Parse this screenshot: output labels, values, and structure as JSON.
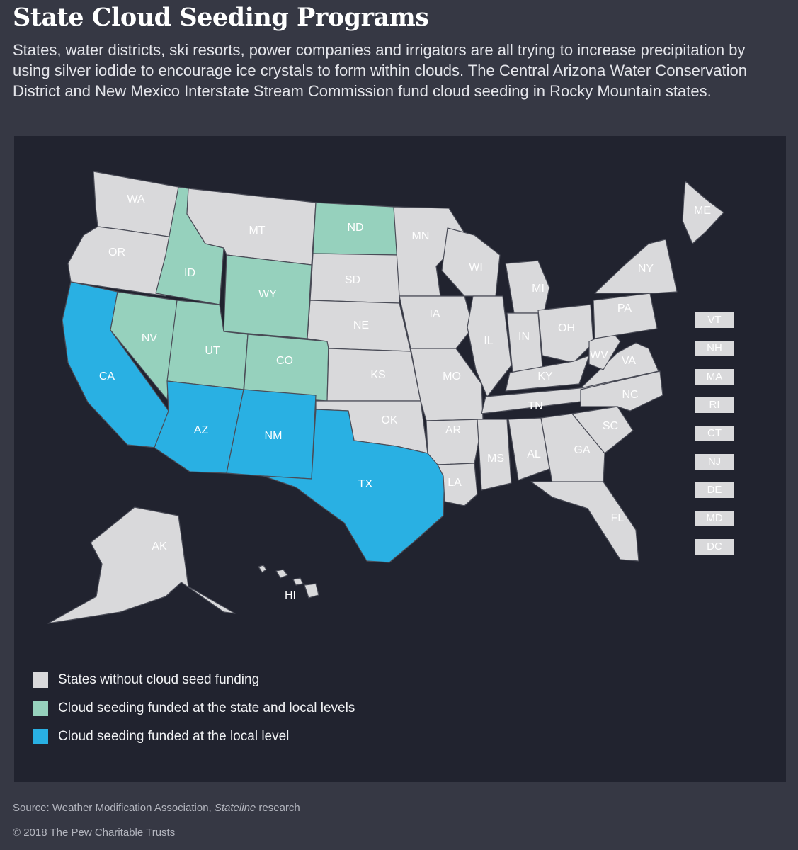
{
  "title": "State Cloud Seeding Programs",
  "subtitle": "States, water districts, ski resorts, power companies and irrigators are all trying to increase precipitation by using silver iodide to encourage ice crystals to form within clouds. The Central Arizona Water Conservation District and New Mexico Interstate Stream Commission fund cloud seeding in Rocky Mountain states.",
  "colors": {
    "none": "#d9d9db",
    "state_and_local": "#96d1bd",
    "local": "#29b0e3",
    "background": "#363844",
    "map_panel": "#21232f"
  },
  "states": {
    "WA": {
      "label": "WA",
      "category": "none"
    },
    "OR": {
      "label": "OR",
      "category": "none"
    },
    "CA": {
      "label": "CA",
      "category": "local"
    },
    "ID": {
      "label": "ID",
      "category": "state_and_local"
    },
    "NV": {
      "label": "NV",
      "category": "state_and_local"
    },
    "MT": {
      "label": "MT",
      "category": "none"
    },
    "WY": {
      "label": "WY",
      "category": "state_and_local"
    },
    "UT": {
      "label": "UT",
      "category": "state_and_local"
    },
    "CO": {
      "label": "CO",
      "category": "state_and_local"
    },
    "AZ": {
      "label": "AZ",
      "category": "local"
    },
    "NM": {
      "label": "NM",
      "category": "local"
    },
    "ND": {
      "label": "ND",
      "category": "state_and_local"
    },
    "SD": {
      "label": "SD",
      "category": "none"
    },
    "NE": {
      "label": "NE",
      "category": "none"
    },
    "KS": {
      "label": "KS",
      "category": "none"
    },
    "OK": {
      "label": "OK",
      "category": "none"
    },
    "TX": {
      "label": "TX",
      "category": "local"
    },
    "MN": {
      "label": "MN",
      "category": "none"
    },
    "IA": {
      "label": "IA",
      "category": "none"
    },
    "MO": {
      "label": "MO",
      "category": "none"
    },
    "AR": {
      "label": "AR",
      "category": "none"
    },
    "LA": {
      "label": "LA",
      "category": "none"
    },
    "WI": {
      "label": "WI",
      "category": "none"
    },
    "IL": {
      "label": "IL",
      "category": "none"
    },
    "MI": {
      "label": "MI",
      "category": "none"
    },
    "IN": {
      "label": "IN",
      "category": "none"
    },
    "OH": {
      "label": "OH",
      "category": "none"
    },
    "KY": {
      "label": "KY",
      "category": "none"
    },
    "TN": {
      "label": "TN",
      "category": "none"
    },
    "MS": {
      "label": "MS",
      "category": "none"
    },
    "AL": {
      "label": "AL",
      "category": "none"
    },
    "GA": {
      "label": "GA",
      "category": "none"
    },
    "FL": {
      "label": "FL",
      "category": "none"
    },
    "SC": {
      "label": "SC",
      "category": "none"
    },
    "NC": {
      "label": "NC",
      "category": "none"
    },
    "VA": {
      "label": "VA",
      "category": "none"
    },
    "WV": {
      "label": "WV",
      "category": "none"
    },
    "PA": {
      "label": "PA",
      "category": "none"
    },
    "NY": {
      "label": "NY",
      "category": "none"
    },
    "ME": {
      "label": "ME",
      "category": "none"
    },
    "AK": {
      "label": "AK",
      "category": "none"
    },
    "HI": {
      "label": "HI",
      "category": "none"
    }
  },
  "small_states": [
    "VT",
    "NH",
    "MA",
    "RI",
    "CT",
    "NJ",
    "DE",
    "MD",
    "DC"
  ],
  "legend": [
    {
      "label": "States without cloud seed funding",
      "category": "none"
    },
    {
      "label": "Cloud seeding funded at the state and local levels",
      "category": "state_and_local"
    },
    {
      "label": "Cloud seeding funded at the local level",
      "category": "local"
    }
  ],
  "source": {
    "prefix": "Source: Weather Modification Association, ",
    "italic": "Stateline",
    "suffix": " research"
  },
  "copyright": "© 2018 The Pew Charitable Trusts"
}
